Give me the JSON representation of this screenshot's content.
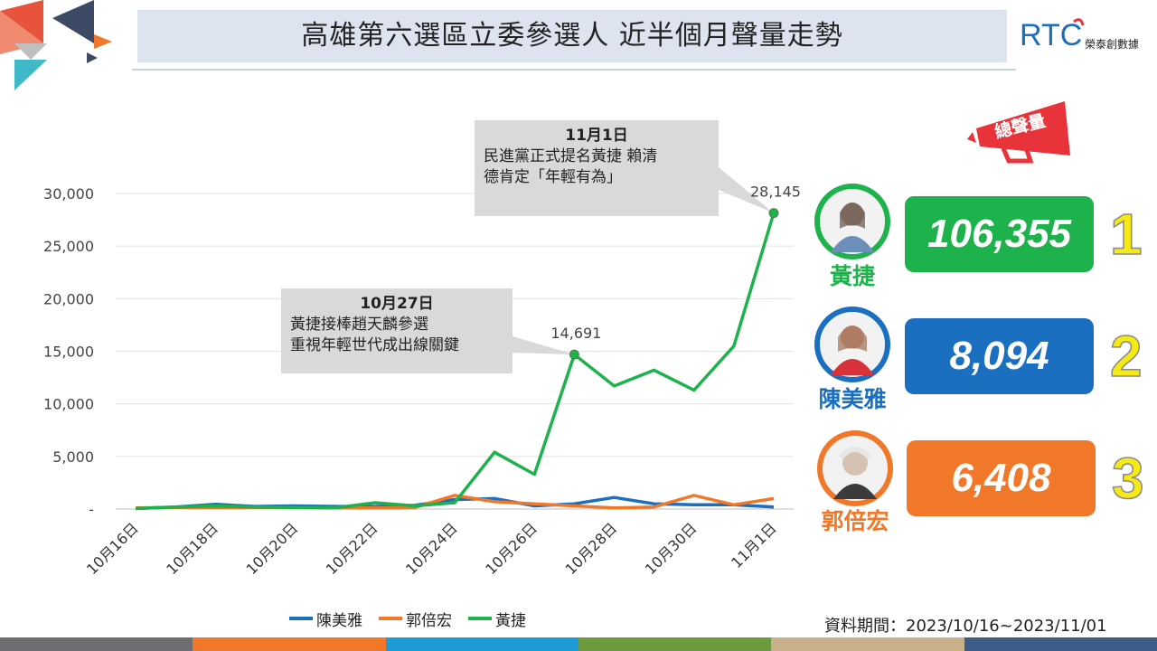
{
  "header": {
    "title": "高雄第六選區立委參選人  近半個月聲量走勢",
    "brand_text": "榮泰創數據",
    "brand_logo_text": "RTC"
  },
  "colors": {
    "green": "#1db24c",
    "blue": "#1a6fc0",
    "orange": "#f07828",
    "title_bg": "#dde4ef",
    "callout_bg": "#d9d9d9"
  },
  "chart_data": {
    "type": "line",
    "categories": [
      "10月16日",
      "10月17日",
      "10月18日",
      "10月19日",
      "10月20日",
      "10月21日",
      "10月22日",
      "10月23日",
      "10月24日",
      "10月25日",
      "10月26日",
      "10月27日",
      "10月28日",
      "10月29日",
      "10月30日",
      "10月31日",
      "11月1日"
    ],
    "x_tick_labels": [
      "10月16日",
      "10月18日",
      "10月20日",
      "10月22日",
      "10月24日",
      "10月26日",
      "10月28日",
      "10月30日",
      "11月1日"
    ],
    "y_ticks": [
      "-",
      "5,000",
      "10,000",
      "15,000",
      "20,000",
      "25,000",
      "30,000"
    ],
    "ylim": [
      0,
      30000
    ],
    "grid": true,
    "legend_position": "bottom",
    "series": [
      {
        "name": "陳美雅",
        "color": "#1a6fc0",
        "values": [
          50,
          200,
          450,
          250,
          300,
          250,
          250,
          350,
          900,
          1000,
          300,
          500,
          1100,
          500,
          400,
          400,
          200
        ]
      },
      {
        "name": "郭倍宏",
        "color": "#f07828",
        "values": [
          100,
          150,
          150,
          150,
          150,
          100,
          100,
          150,
          1300,
          700,
          500,
          300,
          100,
          200,
          1300,
          400,
          1000
        ]
      },
      {
        "name": "黃捷",
        "color": "#1db24c",
        "values": [
          50,
          200,
          300,
          200,
          150,
          100,
          600,
          300,
          600,
          5400,
          3300,
          14691,
          11700,
          13200,
          11300,
          15500,
          28145
        ]
      }
    ],
    "data_labels": [
      {
        "series": "黃捷",
        "category": "10月27日",
        "text": "14,691"
      },
      {
        "series": "黃捷",
        "category": "11月1日",
        "text": "28,145"
      }
    ]
  },
  "callouts": {
    "nov1": {
      "date": "11月1日",
      "line1": "民進黨正式提名黃捷 賴清",
      "line2": "德肯定「年輕有為」"
    },
    "oct27": {
      "date": "10月27日",
      "line1": "黃捷接棒趙天麟參選",
      "line2": "重視年輕世代成出線關鍵"
    }
  },
  "ranking": {
    "badge": "總聲量",
    "items": [
      {
        "rank": "1",
        "name": "黃捷",
        "total": "106,355",
        "color": "#1db24c"
      },
      {
        "rank": "2",
        "name": "陳美雅",
        "total": "8,094",
        "color": "#1a6fc0"
      },
      {
        "rank": "3",
        "name": "郭倍宏",
        "total": "6,408",
        "color": "#f07828"
      }
    ]
  },
  "legend": [
    {
      "name": "陳美雅",
      "color": "#1a6fc0"
    },
    {
      "name": "郭倍宏",
      "color": "#f07828"
    },
    {
      "name": "黃捷",
      "color": "#1db24c"
    }
  ],
  "footer": {
    "source_note": "資料期間：2023/10/16~2023/11/01"
  },
  "bottom_strip_colors": [
    "#6d6e71",
    "#f07828",
    "#1d9bd6",
    "#6e9a3e",
    "#c8b08a",
    "#3f5c86"
  ]
}
